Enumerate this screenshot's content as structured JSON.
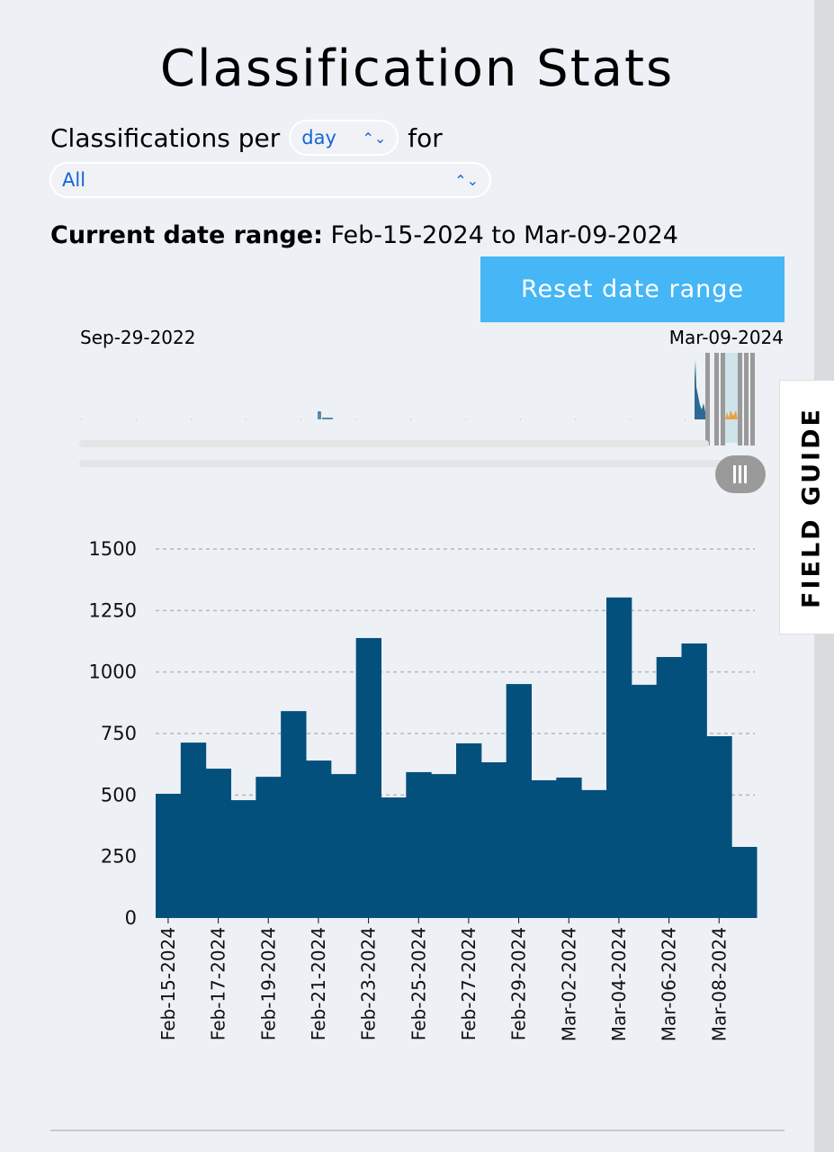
{
  "title": "Classification Stats",
  "controls": {
    "prefix": "Classifications per",
    "period_value": "day",
    "suffix": "for",
    "group_value": "All"
  },
  "date_range": {
    "label": "Current date range:",
    "value": "Feb-15-2024 to Mar-09-2024"
  },
  "reset_label": "Reset date range",
  "overview": {
    "start_label": "Sep-29-2022",
    "end_label": "Mar-09-2024"
  },
  "field_guide_label": "FIELD GUIDE",
  "colors": {
    "bar": "#04507d",
    "accent": "#45b6f6",
    "highlight": "#e8a24a"
  },
  "chart_data": {
    "type": "bar",
    "title": "",
    "xlabel": "",
    "ylabel": "",
    "ylim": [
      0,
      1500
    ],
    "yticks": [
      0,
      250,
      500,
      750,
      1000,
      1250,
      1500
    ],
    "grid": true,
    "categories": [
      "Feb-15-2024",
      "Feb-16-2024",
      "Feb-17-2024",
      "Feb-18-2024",
      "Feb-19-2024",
      "Feb-20-2024",
      "Feb-21-2024",
      "Feb-22-2024",
      "Feb-23-2024",
      "Feb-24-2024",
      "Feb-25-2024",
      "Feb-26-2024",
      "Feb-27-2024",
      "Feb-28-2024",
      "Feb-29-2024",
      "Mar-01-2024",
      "Mar-02-2024",
      "Mar-03-2024",
      "Mar-04-2024",
      "Mar-05-2024",
      "Mar-06-2024",
      "Mar-07-2024",
      "Mar-08-2024",
      "Mar-09-2024"
    ],
    "xtick_labels": [
      "Feb-15-2024",
      "Feb-17-2024",
      "Feb-19-2024",
      "Feb-21-2024",
      "Feb-23-2024",
      "Feb-25-2024",
      "Feb-27-2024",
      "Feb-29-2024",
      "Mar-02-2024",
      "Mar-04-2024",
      "Mar-06-2024",
      "Mar-08-2024"
    ],
    "values": [
      505,
      713,
      607,
      479,
      574,
      841,
      640,
      585,
      1138,
      490,
      593,
      585,
      710,
      633,
      951,
      560,
      571,
      520,
      1303,
      948,
      1061,
      1116,
      739,
      289
    ]
  }
}
